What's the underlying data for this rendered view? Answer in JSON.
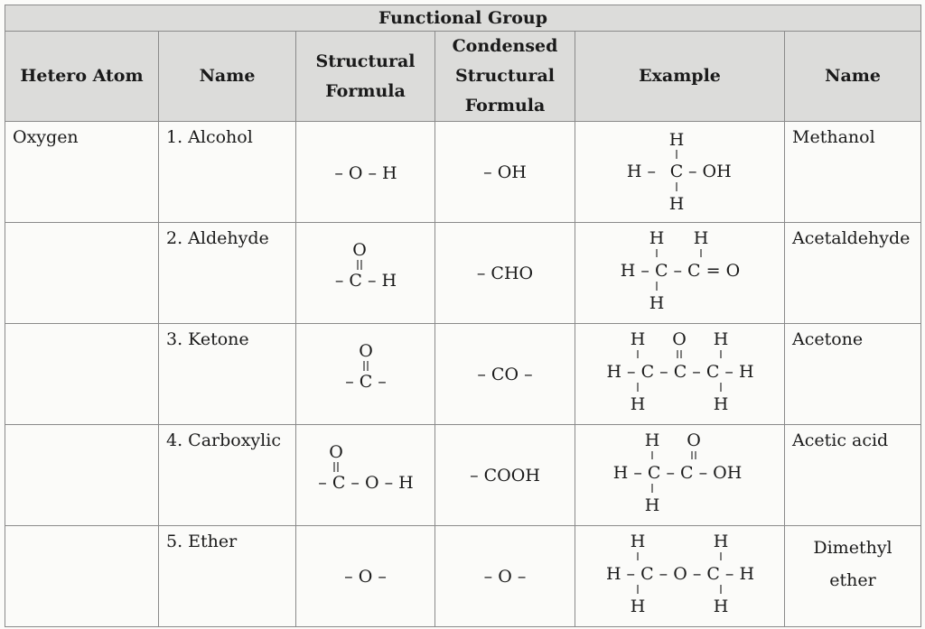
{
  "group_header": "Functional Group",
  "columns": {
    "hetero_atom": "Hetero Atom",
    "name": "Name",
    "structural_formula": [
      "Structural",
      "Formula"
    ],
    "condensed": [
      "Condensed",
      "Structural",
      "Formula"
    ],
    "example": "Example",
    "example_name": "Name"
  },
  "rows": [
    {
      "hetero_atom": "Oxygen",
      "name": "1. Alcohol",
      "structural": {
        "mid": "– O – H"
      },
      "condensed": "– OH",
      "example": {
        "top": "H",
        "mid_left": "H –",
        "center": "C",
        "mid_right": "– OH",
        "bottom": "H"
      },
      "example_name": "Methanol"
    },
    {
      "hetero_atom": "",
      "name": "2. Aldehyde",
      "structural": {
        "top": "O",
        "mid": "– C – H"
      },
      "condensed": "– CHO",
      "example": {
        "h1": "H",
        "h2": "H",
        "mid": "H – C – C = O",
        "bottom": "H"
      },
      "example_name": "Acetaldehyde"
    },
    {
      "hetero_atom": "",
      "name": "3. Ketone",
      "structural": {
        "top": "O",
        "mid": "– C –"
      },
      "condensed": "– CO –",
      "example": {
        "h1": "H",
        "o": "O",
        "h2": "H",
        "mid": "H – C – C – C – H",
        "b1": "H",
        "b2": "H"
      },
      "example_name": "Acetone"
    },
    {
      "hetero_atom": "",
      "name": "4. Carboxylic",
      "structural": {
        "top": "O",
        "mid": "– C – O – H"
      },
      "condensed": "– COOH",
      "example": {
        "h1": "H",
        "o": "O",
        "mid": "H – C – C – OH",
        "bottom": "H"
      },
      "example_name": "Acetic acid"
    },
    {
      "hetero_atom": "",
      "name": "5. Ether",
      "structural": {
        "mid": "– O –"
      },
      "condensed": "– O –",
      "example": {
        "h1": "H",
        "h2": "H",
        "mid": "H – C – O – C – H",
        "b1": "H",
        "b2": "H"
      },
      "example_name": [
        "Dimethyl",
        "ether"
      ]
    }
  ]
}
